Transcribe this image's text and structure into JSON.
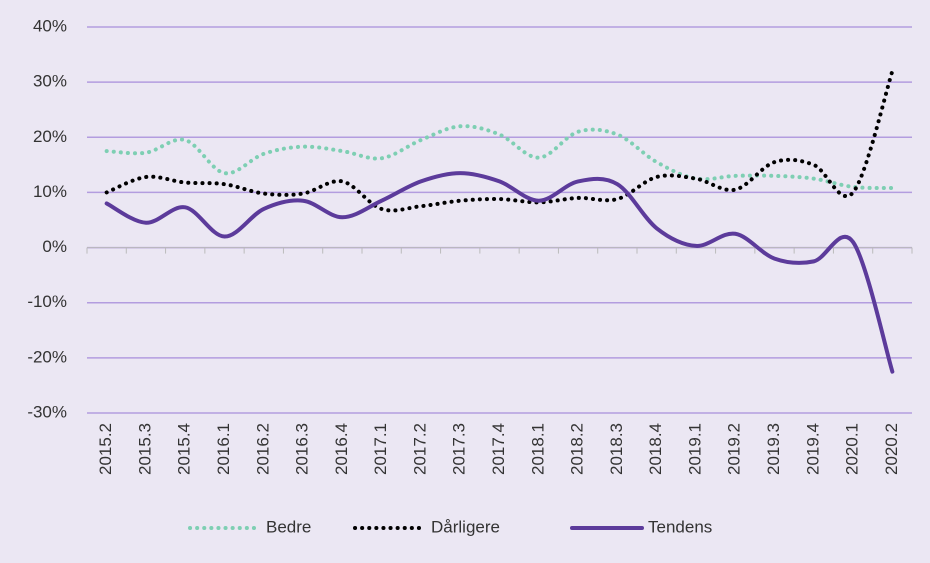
{
  "chart_data": {
    "type": "line",
    "categories": [
      "2015.2",
      "2015.3",
      "2015.4",
      "2016.1",
      "2016.2",
      "2016.3",
      "2016.4",
      "2017.1",
      "2017.2",
      "2017.3",
      "2017.4",
      "2018.1",
      "2018.2",
      "2018.3",
      "2018.4",
      "2019.1",
      "2019.2",
      "2019.3",
      "2019.4",
      "2020.1",
      "2020.2"
    ],
    "series": [
      {
        "name": "Bedre",
        "color": "#7ecfb3",
        "style": "dotted",
        "values": [
          17.5,
          17.2,
          19.5,
          13.5,
          17,
          18.3,
          17.5,
          16.2,
          19.5,
          22,
          20.5,
          16.3,
          21,
          20.5,
          15.5,
          12.5,
          13,
          13,
          12.5,
          11,
          10.8
        ]
      },
      {
        "name": "Dårligere",
        "color": "#000000",
        "style": "dotted",
        "values": [
          10,
          12.8,
          11.8,
          11.5,
          9.8,
          9.8,
          12,
          7,
          7.5,
          8.5,
          8.8,
          8.2,
          9,
          8.8,
          12.8,
          12.5,
          10.5,
          15.5,
          15,
          10,
          32
        ]
      },
      {
        "name": "Tendens",
        "color": "#5c3b9b",
        "style": "solid",
        "values": [
          8,
          4.5,
          7.3,
          2,
          7,
          8.5,
          5.5,
          8.5,
          12,
          13.5,
          12,
          8.5,
          12,
          11.5,
          3.5,
          0.3,
          2.5,
          -2,
          -2.5,
          1,
          -22.5
        ]
      }
    ],
    "ylim": [
      -30,
      40
    ],
    "yticks": [
      {
        "value": -30,
        "label": "-30%"
      },
      {
        "value": -20,
        "label": "-20%"
      },
      {
        "value": -10,
        "label": "-10%"
      },
      {
        "value": 0,
        "label": "0%"
      },
      {
        "value": 10,
        "label": "10%"
      },
      {
        "value": 20,
        "label": "20%"
      },
      {
        "value": 30,
        "label": "30%"
      },
      {
        "value": 40,
        "label": "40%"
      }
    ],
    "grid": true,
    "grid_color": "#b39ddf",
    "legend": "bottom"
  }
}
